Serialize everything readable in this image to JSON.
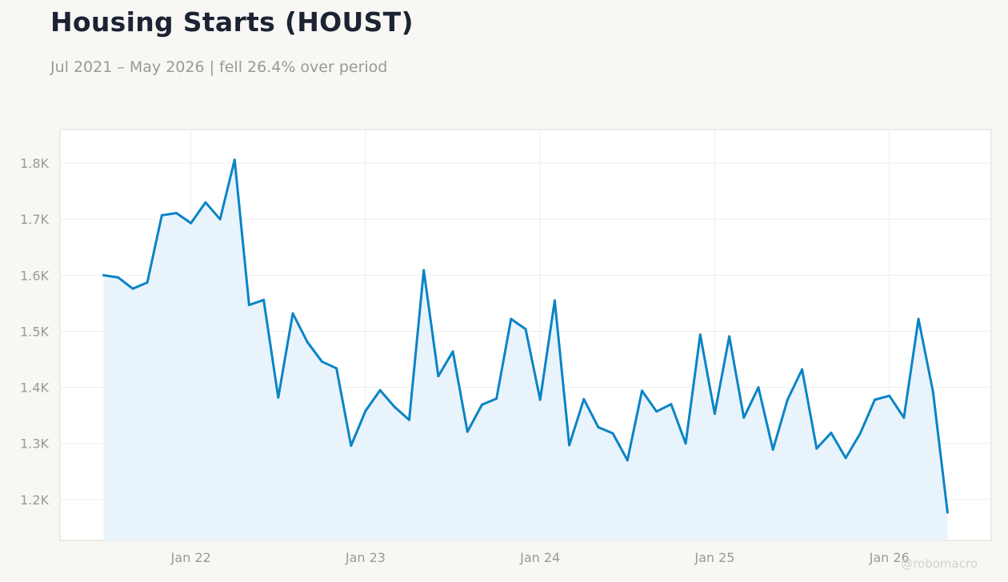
{
  "header": {
    "title": "Housing Starts (HOUST)",
    "subtitle": "Jul 2021 – May 2026 | fell 26.4% over period"
  },
  "watermark": "@robomacro",
  "colors": {
    "line": "#0a84c6",
    "fill": "#e9f3fb",
    "grid": "#eeeeee",
    "frame": "#dcdcd6"
  },
  "chart_data": {
    "type": "line",
    "title": "Housing Starts (HOUST)",
    "subtitle": "Jul 2021 – May 2026 | fell 26.4% over period",
    "xlabel": "",
    "ylabel": "",
    "x_start": "2021-07",
    "yticks": [
      1200,
      1300,
      1400,
      1500,
      1600,
      1700,
      1800
    ],
    "ytick_labels": [
      "1.2K",
      "1.3K",
      "1.4K",
      "1.5K",
      "1.6K",
      "1.7K",
      "1.8K"
    ],
    "xticks": [
      "2022-01",
      "2023-01",
      "2024-01",
      "2025-01",
      "2026-01"
    ],
    "xtick_labels": [
      "Jan 22",
      "Jan 23",
      "Jan 24",
      "Jan 25",
      "Jan 26"
    ],
    "ylim": [
      1127,
      1860
    ],
    "xlim": [
      "2021-04",
      "2026-08"
    ],
    "grid": true,
    "area_fill": true,
    "series": [
      {
        "x": [
          "2021-07",
          "2021-08",
          "2021-09",
          "2021-10",
          "2021-11",
          "2021-12",
          "2022-01",
          "2022-02",
          "2022-03",
          "2022-04",
          "2022-05",
          "2022-06",
          "2022-07",
          "2022-08",
          "2022-09",
          "2022-10",
          "2022-11",
          "2022-12",
          "2023-01",
          "2023-02",
          "2023-03",
          "2023-04",
          "2023-05",
          "2023-06",
          "2023-07",
          "2023-08",
          "2023-09",
          "2023-10",
          "2023-11",
          "2023-12",
          "2024-01",
          "2024-02",
          "2024-03",
          "2024-04",
          "2024-05",
          "2024-06",
          "2024-07",
          "2024-08",
          "2024-09",
          "2024-10",
          "2024-11",
          "2024-12",
          "2025-01",
          "2025-02",
          "2025-03",
          "2025-04",
          "2025-05",
          "2025-06",
          "2025-07",
          "2025-08",
          "2025-09",
          "2025-10",
          "2025-11",
          "2025-12",
          "2026-01",
          "2026-02",
          "2026-03",
          "2026-04",
          "2026-05"
        ],
        "values": [
          1600,
          1596,
          1576,
          1587,
          1707,
          1711,
          1693,
          1730,
          1700,
          1806,
          1547,
          1556,
          1382,
          1532,
          1481,
          1446,
          1434,
          1296,
          1358,
          1395,
          1365,
          1342,
          1609,
          1420,
          1464,
          1321,
          1369,
          1380,
          1522,
          1504,
          1378,
          1555,
          1297,
          1379,
          1329,
          1318,
          1270,
          1394,
          1357,
          1370,
          1300,
          1494,
          1353,
          1491,
          1346,
          1400,
          1289,
          1378,
          1432,
          1291,
          1319,
          1274,
          1318,
          1378,
          1385,
          1346,
          1522,
          1392,
          1177
        ]
      }
    ]
  }
}
